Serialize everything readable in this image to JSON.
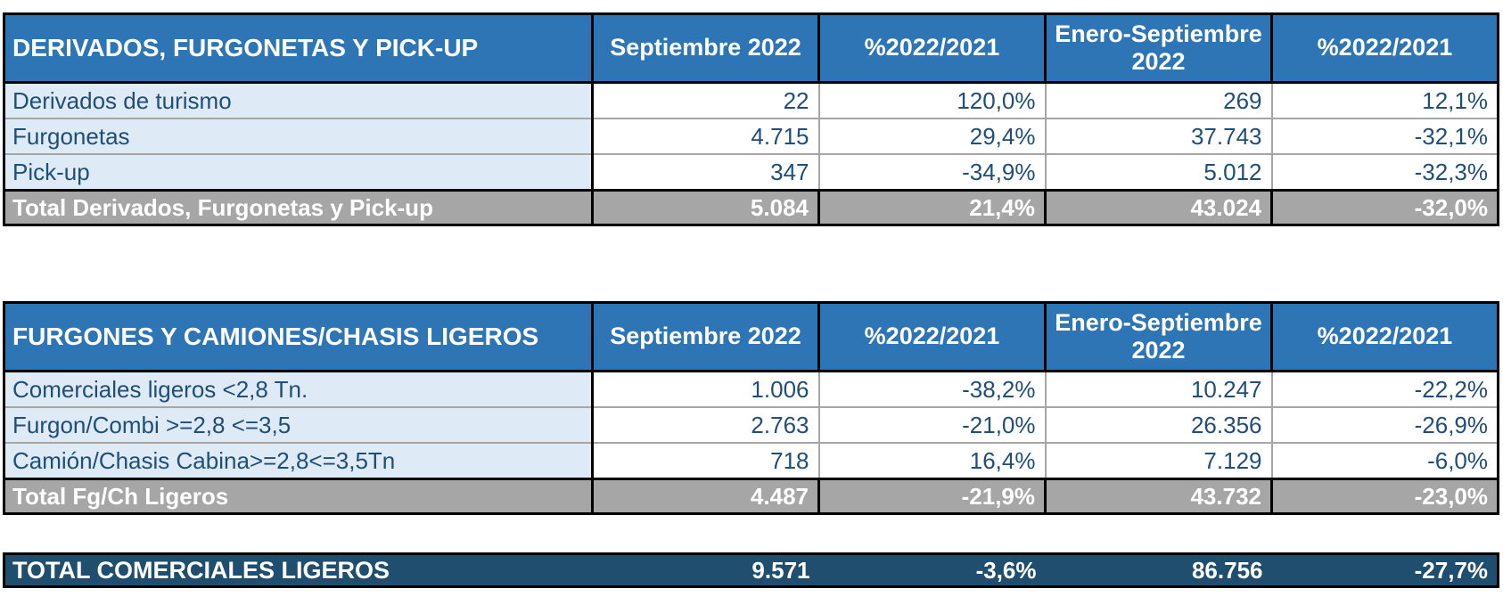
{
  "columns": [
    "Septiembre 2022",
    "%2022/2021",
    "Enero-Septiembre 2022",
    "%2022/2021"
  ],
  "tables": [
    {
      "title": "DERIVADOS, FURGONETAS Y PICK-UP",
      "rows": [
        {
          "label": "Derivados de turismo",
          "values": [
            "22",
            "120,0%",
            "269",
            "12,1%"
          ]
        },
        {
          "label": "Furgonetas",
          "values": [
            "4.715",
            "29,4%",
            "37.743",
            "-32,1%"
          ]
        },
        {
          "label": "Pick-up",
          "values": [
            "347",
            "-34,9%",
            "5.012",
            "-32,3%"
          ]
        }
      ],
      "total": {
        "label": "Total Derivados, Furgonetas y Pick-up",
        "values": [
          "5.084",
          "21,4%",
          "43.024",
          "-32,0%"
        ]
      }
    },
    {
      "title": "FURGONES Y CAMIONES/CHASIS LIGEROS",
      "rows": [
        {
          "label": "Comerciales ligeros <2,8 Tn.",
          "values": [
            "1.006",
            "-38,2%",
            "10.247",
            "-22,2%"
          ]
        },
        {
          "label": "Furgon/Combi >=2,8 <=3,5",
          "values": [
            "2.763",
            "-21,0%",
            "26.356",
            "-26,9%"
          ]
        },
        {
          "label": "Camión/Chasis Cabina>=2,8<=3,5Tn",
          "values": [
            "718",
            "16,4%",
            "7.129",
            "-6,0%"
          ]
        }
      ],
      "total": {
        "label": "Total Fg/Ch Ligeros",
        "values": [
          "4.487",
          "-21,9%",
          "43.732",
          "-23,0%"
        ]
      }
    }
  ],
  "grand_total": {
    "label": "TOTAL COMERCIALES LIGEROS",
    "values": [
      "9.571",
      "-3,6%",
      "86.756",
      "-27,7%"
    ]
  },
  "colors": {
    "header_blue": "#2E75B6",
    "row_label_light_blue": "#DEEAF6",
    "text_navy": "#1F4E79",
    "total_gray": "#A6A6A6",
    "grand_total_navy": "#1F4E6E",
    "border_black": "#000000",
    "thin_separator_gray": "#A6A6A6"
  }
}
